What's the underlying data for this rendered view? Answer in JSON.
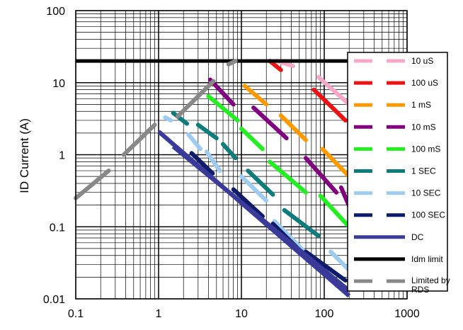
{
  "chart_data": {
    "type": "line",
    "title": "",
    "xlabel": "",
    "ylabel": "ID Current (A)",
    "xscale": "log",
    "yscale": "log",
    "xlim": [
      0.1,
      1000
    ],
    "ylim": [
      0.01,
      100
    ],
    "grid": true,
    "x_ticks": [
      "0.1",
      "1",
      "10",
      "100",
      "1000"
    ],
    "y_ticks": [
      "100",
      "10",
      "1",
      "0.1",
      "0.01"
    ],
    "legend_position": "right",
    "series": [
      {
        "name": "10 uS",
        "color": "#f7a8c8",
        "dash": "dashed",
        "segments": [
          [
            [
              27,
              20
            ],
            [
              42,
              17
            ]
          ],
          [
            [
              85,
              12
            ],
            [
              200,
              5
            ]
          ]
        ]
      },
      {
        "name": "100 uS",
        "color": "#ee1111",
        "dash": "dashed",
        "segments": [
          [
            [
              22,
              20
            ],
            [
              30,
              15
            ]
          ],
          [
            [
              75,
              8
            ],
            [
              180,
              3
            ]
          ]
        ]
      },
      {
        "name": "1 mS",
        "color": "#ff9900",
        "dash": "dashed",
        "segments": [
          [
            [
              11,
              9
            ],
            [
              20,
              5
            ]
          ],
          [
            [
              30,
              3.5
            ],
            [
              60,
              1.6
            ]
          ],
          [
            [
              95,
              1.2
            ],
            [
              200,
              0.5
            ]
          ]
        ]
      },
      {
        "name": "10 mS",
        "color": "#800080",
        "dash": "dashed",
        "segments": [
          [
            [
              4.2,
              11
            ],
            [
              8,
              5
            ]
          ],
          [
            [
              14,
              4.5
            ],
            [
              35,
              1.7
            ]
          ],
          [
            [
              60,
              0.9
            ],
            [
              140,
              0.3
            ]
          ],
          [
            [
              160,
              0.35
            ],
            [
              220,
              0.15
            ]
          ]
        ]
      },
      {
        "name": "100 mS",
        "color": "#22ee22",
        "dash": "dashed",
        "segments": [
          [
            [
              4,
              6.5
            ],
            [
              9,
              3
            ]
          ],
          [
            [
              10,
              2.3
            ],
            [
              18,
              1.2
            ]
          ],
          [
            [
              22,
              0.8
            ],
            [
              60,
              0.3
            ]
          ],
          [
            [
              90,
              0.27
            ],
            [
              200,
              0.1
            ]
          ]
        ]
      },
      {
        "name": "1 SEC",
        "color": "#0e7c7c",
        "dash": "dashed",
        "segments": [
          [
            [
              1.5,
              3.8
            ],
            [
              2.2,
              2.7
            ]
          ],
          [
            [
              3,
              2.6
            ],
            [
              5,
              1.7
            ]
          ],
          [
            [
              6,
              1.4
            ],
            [
              8.5,
              0.9
            ]
          ],
          [
            [
              12,
              0.6
            ],
            [
              24,
              0.28
            ]
          ],
          [
            [
              33,
              0.17
            ],
            [
              85,
              0.075
            ]
          ]
        ]
      },
      {
        "name": "10 SEC",
        "color": "#9ecbf0",
        "dash": "dashed",
        "segments": [
          [
            [
              1.2,
              3.3
            ],
            [
              1.4,
              3.0
            ]
          ],
          [
            [
              2.3,
              1.9
            ],
            [
              3.2,
              1.2
            ]
          ],
          [
            [
              3.8,
              1.1
            ],
            [
              5.5,
              0.6
            ]
          ],
          [
            [
              10,
              0.5
            ],
            [
              20,
              0.23
            ]
          ],
          [
            [
              25,
              0.12
            ],
            [
              58,
              0.045
            ]
          ],
          [
            [
              120,
              0.045
            ],
            [
              200,
              0.025
            ]
          ]
        ]
      },
      {
        "name": "100 SEC",
        "color": "#0d1b6b",
        "dash": "dashed",
        "segments": [
          [
            [
              2.5,
              1.05
            ],
            [
              4.5,
              0.55
            ]
          ],
          [
            [
              8,
              0.33
            ],
            [
              18,
              0.14
            ]
          ],
          [
            [
              24,
              0.11
            ],
            [
              48,
              0.05
            ]
          ],
          [
            [
              60,
              0.045
            ],
            [
              180,
              0.018
            ]
          ]
        ]
      },
      {
        "name": "DC",
        "color": "#3a3a9a",
        "dash": "solid",
        "segments": [
          [
            [
              1,
              2.1
            ],
            [
              200,
              0.011
            ]
          ],
          [
            [
              1.5,
              1.3
            ],
            [
              200,
              0.013
            ]
          ]
        ]
      },
      {
        "name": "Idm limit",
        "color": "#000000",
        "dash": "solid",
        "segments": [
          [
            [
              0.1,
              20
            ],
            [
              200,
              20
            ]
          ],
          [
            [
              200,
              20
            ],
            [
              200,
              5
            ]
          ]
        ]
      },
      {
        "name": "Limited by RDS",
        "color": "#888888",
        "dash": "dashed",
        "segments": [
          [
            [
              0.1,
              0.25
            ],
            [
              0.25,
              0.6
            ]
          ],
          [
            [
              0.38,
              1.0
            ],
            [
              0.9,
              2.6
            ]
          ],
          [
            [
              1.7,
              3.4
            ],
            [
              4.6,
              10.5
            ]
          ],
          [
            [
              7,
              18
            ],
            [
              8.5,
              20
            ]
          ]
        ]
      }
    ]
  }
}
